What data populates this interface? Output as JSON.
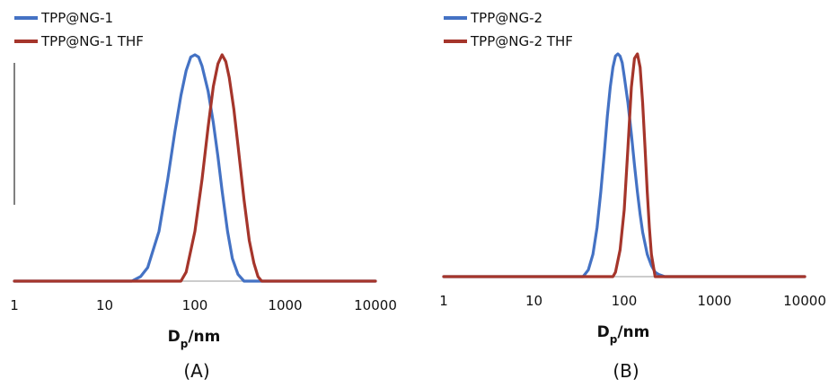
{
  "chart_data": [
    {
      "type": "line",
      "panel_label": "(A)",
      "xlabel_main": "D",
      "xlabel_sub": "p",
      "xlabel_unit": "/nm",
      "x_scale": "log",
      "xlim": [
        1,
        10000
      ],
      "x_ticks": [
        "1",
        "10",
        "100",
        "1000",
        "10000"
      ],
      "legend_position": "top-left",
      "colors": {
        "blue": "#4472C4",
        "red": "#A5352B"
      },
      "series": [
        {
          "name": "TPP@NG-1",
          "color": "#4472C4",
          "x": [
            1,
            20,
            25,
            30,
            40,
            50,
            60,
            70,
            80,
            90,
            100,
            110,
            120,
            140,
            160,
            180,
            200,
            230,
            260,
            300,
            350,
            400,
            600,
            1000,
            10000
          ],
          "y": [
            0,
            0,
            2,
            6,
            22,
            45,
            66,
            82,
            93,
            99,
            100,
            99,
            95,
            84,
            70,
            55,
            40,
            22,
            10,
            3,
            0,
            0,
            0,
            0,
            0
          ]
        },
        {
          "name": "TPP@NG-1 THF",
          "color": "#A5352B",
          "x": [
            1,
            70,
            80,
            100,
            120,
            140,
            160,
            180,
            200,
            220,
            240,
            270,
            300,
            350,
            400,
            450,
            500,
            550,
            1000,
            10000
          ],
          "y": [
            0,
            0,
            4,
            22,
            45,
            68,
            86,
            96,
            100,
            97,
            90,
            76,
            60,
            36,
            18,
            8,
            2,
            0,
            0,
            0
          ]
        }
      ]
    },
    {
      "type": "line",
      "panel_label": "(B)",
      "xlabel_main": "D",
      "xlabel_sub": "p",
      "xlabel_unit": "/nm",
      "x_scale": "log",
      "xlim": [
        1,
        10000
      ],
      "x_ticks": [
        "1",
        "10",
        "100",
        "1000",
        "10000"
      ],
      "legend_position": "top-left",
      "colors": {
        "blue": "#4472C4",
        "red": "#A5352B"
      },
      "series": [
        {
          "name": "TPP@NG-2",
          "color": "#4472C4",
          "x": [
            1,
            35,
            40,
            45,
            50,
            55,
            60,
            65,
            70,
            75,
            80,
            85,
            90,
            95,
            100,
            110,
            120,
            130,
            140,
            150,
            160,
            180,
            200,
            220,
            240,
            260,
            280,
            300,
            10000
          ],
          "y": [
            0,
            0,
            3,
            10,
            22,
            38,
            55,
            72,
            85,
            94,
            99,
            100,
            99,
            96,
            90,
            78,
            64,
            50,
            38,
            28,
            20,
            10,
            5,
            2,
            1,
            0.5,
            0,
            0,
            0
          ]
        },
        {
          "name": "TPP@NG-2 THF",
          "color": "#A5352B",
          "x": [
            1,
            75,
            80,
            90,
            100,
            110,
            120,
            130,
            140,
            150,
            160,
            170,
            180,
            190,
            200,
            220,
            10000
          ],
          "y": [
            0,
            0,
            2,
            12,
            30,
            58,
            85,
            98,
            100,
            94,
            78,
            58,
            38,
            22,
            10,
            0,
            0
          ]
        }
      ]
    }
  ]
}
